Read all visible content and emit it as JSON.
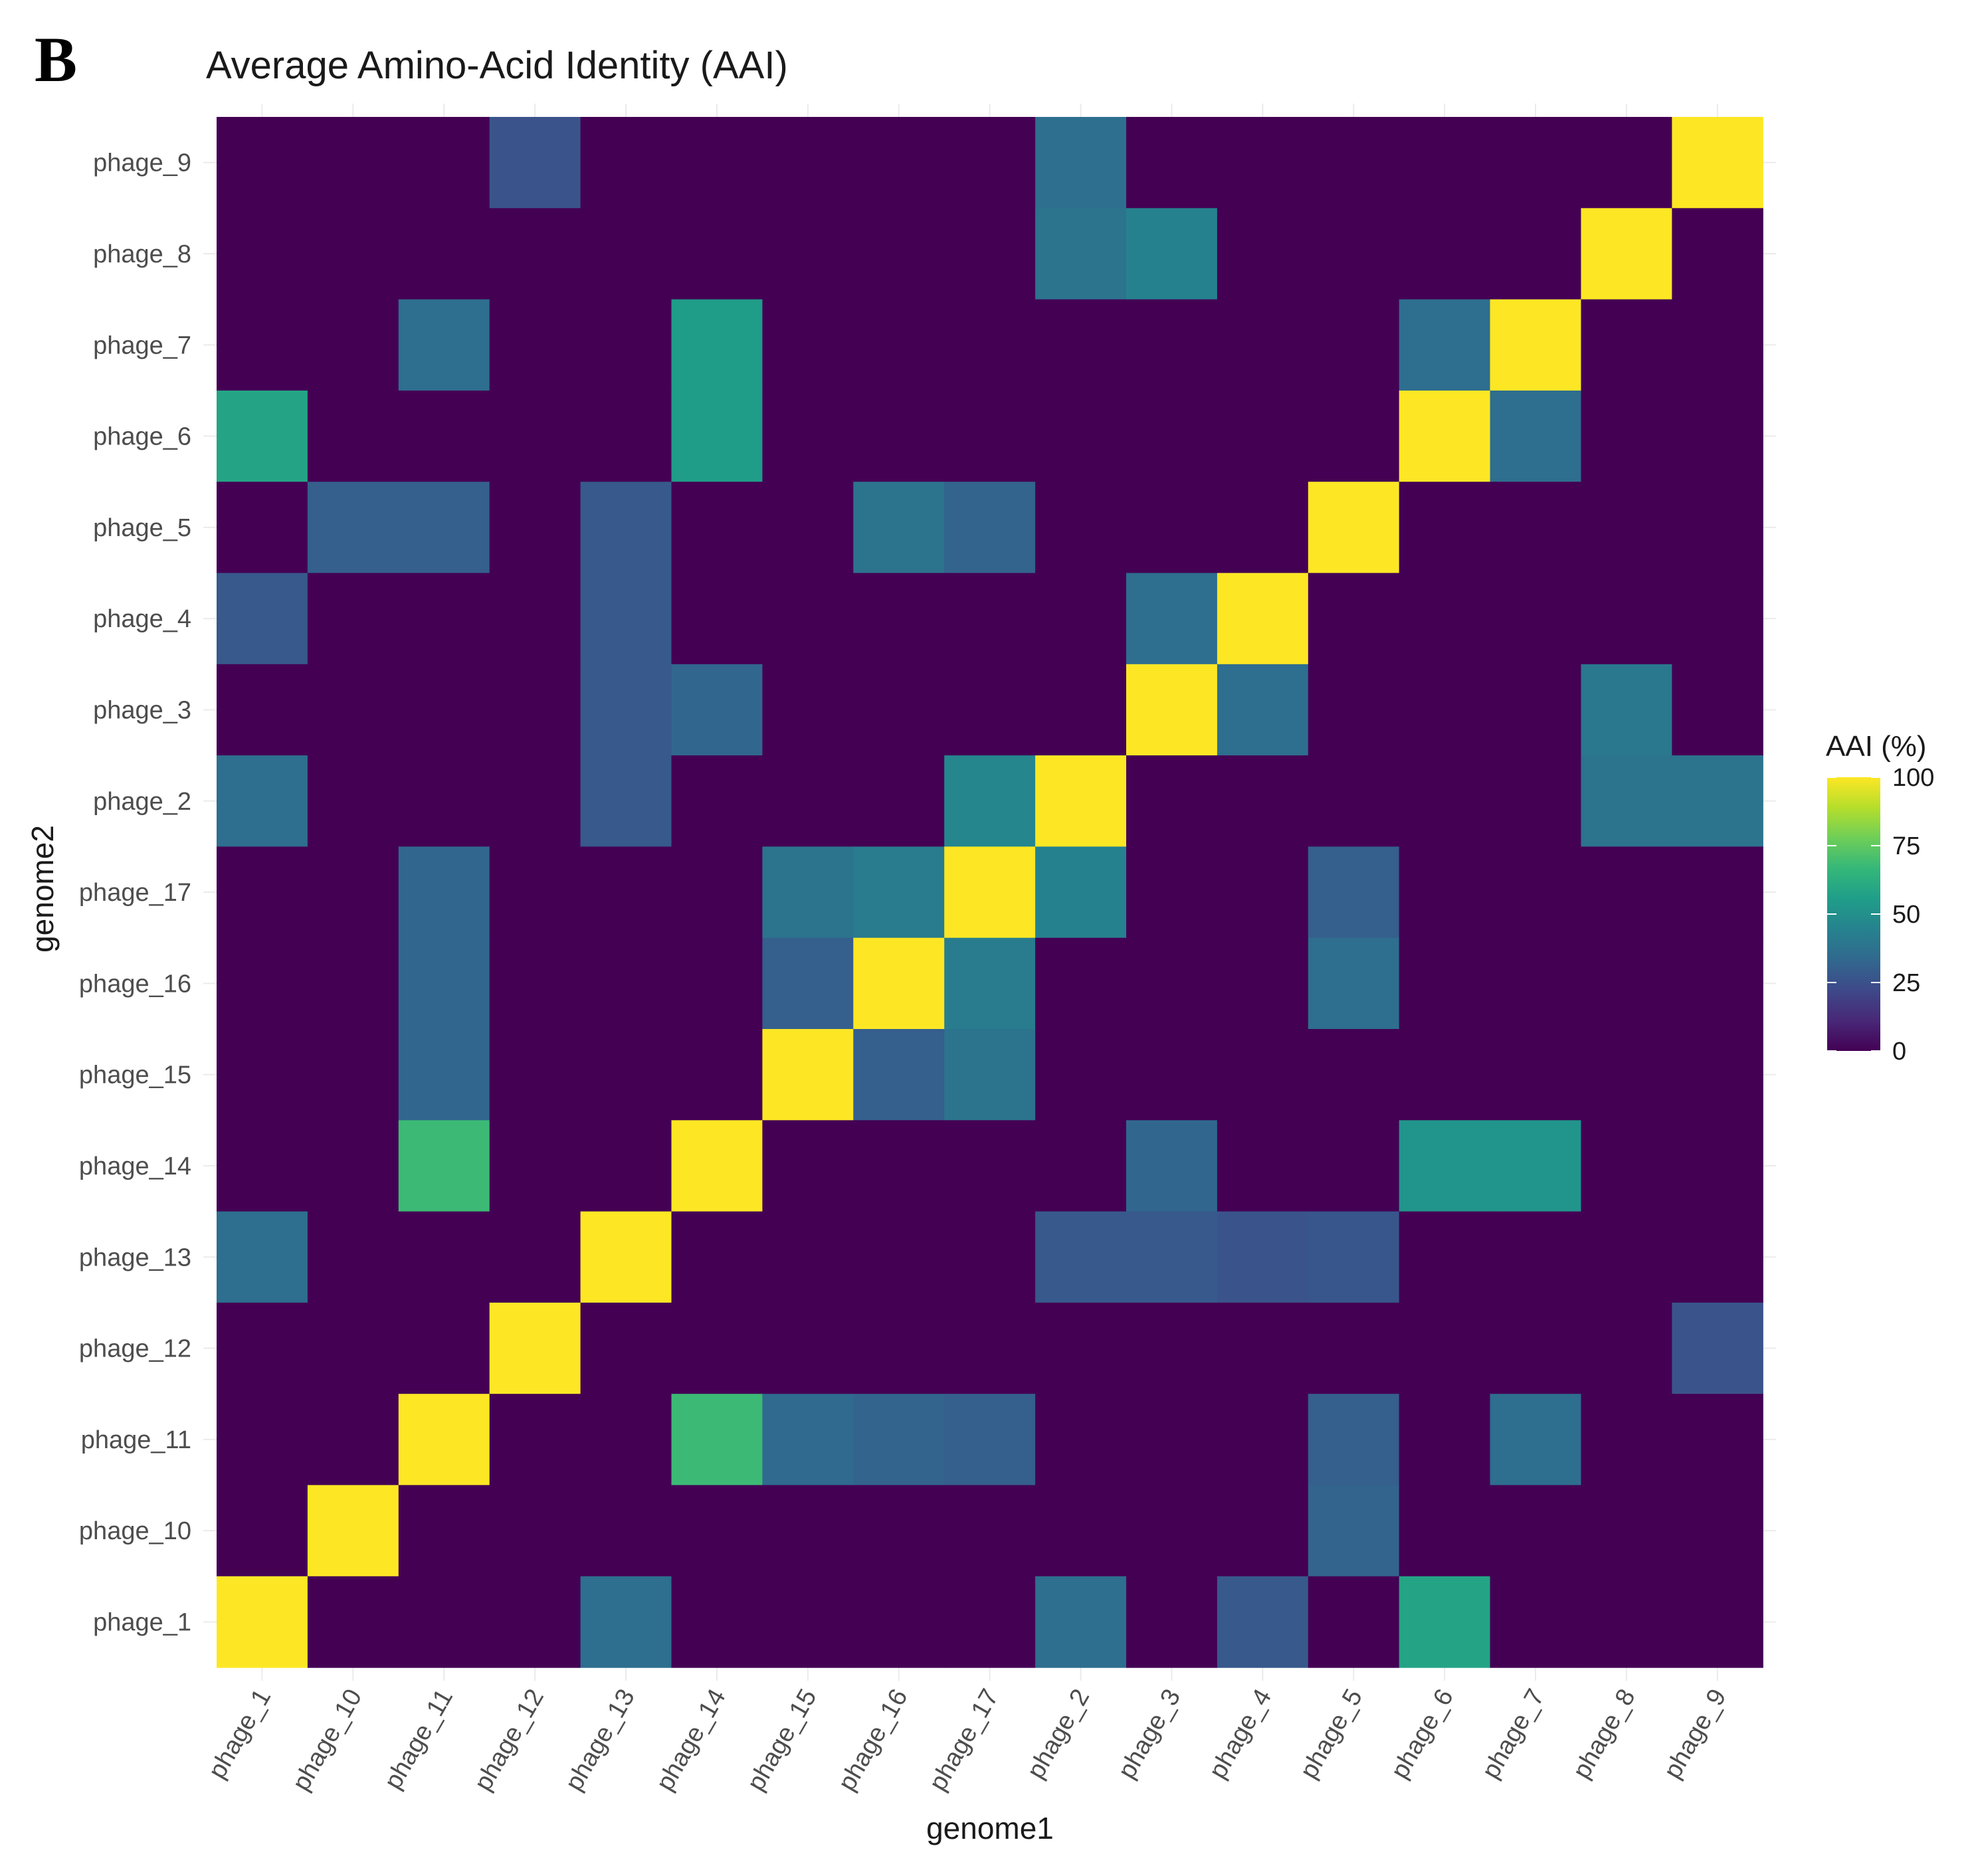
{
  "panel_label": "B",
  "chart_data": {
    "type": "heatmap",
    "title": "Average Amino-Acid Identity (AAI)",
    "xlabel": "genome1",
    "ylabel": "genome2",
    "x_categories": [
      "phage_1",
      "phage_10",
      "phage_11",
      "phage_12",
      "phage_13",
      "phage_14",
      "phage_15",
      "phage_16",
      "phage_17",
      "phage_2",
      "phage_3",
      "phage_4",
      "phage_5",
      "phage_6",
      "phage_7",
      "phage_8",
      "phage_9"
    ],
    "y_categories_top_to_bottom": [
      "phage_9",
      "phage_8",
      "phage_7",
      "phage_6",
      "phage_5",
      "phage_4",
      "phage_3",
      "phage_2",
      "phage_17",
      "phage_16",
      "phage_15",
      "phage_14",
      "phage_13",
      "phage_12",
      "phage_11",
      "phage_10",
      "phage_1"
    ],
    "values_rows_top_to_bottom": [
      [
        0,
        0,
        0,
        26,
        0,
        0,
        0,
        0,
        0,
        36,
        0,
        0,
        0,
        0,
        0,
        0,
        100
      ],
      [
        0,
        0,
        0,
        0,
        0,
        0,
        0,
        0,
        0,
        38,
        44,
        0,
        0,
        0,
        0,
        100,
        0
      ],
      [
        0,
        0,
        36,
        0,
        0,
        55,
        0,
        0,
        0,
        0,
        0,
        0,
        0,
        36,
        100,
        0,
        0
      ],
      [
        58,
        0,
        0,
        0,
        0,
        55,
        0,
        0,
        0,
        0,
        0,
        0,
        0,
        100,
        36,
        0,
        0
      ],
      [
        0,
        30,
        30,
        0,
        28,
        0,
        0,
        38,
        32,
        0,
        0,
        0,
        100,
        0,
        0,
        0,
        0
      ],
      [
        28,
        0,
        0,
        0,
        28,
        0,
        0,
        0,
        0,
        0,
        36,
        100,
        0,
        0,
        0,
        0,
        0
      ],
      [
        0,
        0,
        0,
        0,
        28,
        33,
        0,
        0,
        0,
        0,
        100,
        36,
        0,
        0,
        0,
        40,
        0
      ],
      [
        36,
        0,
        0,
        0,
        28,
        0,
        0,
        0,
        46,
        100,
        0,
        0,
        0,
        0,
        0,
        38,
        38
      ],
      [
        0,
        0,
        33,
        0,
        0,
        0,
        38,
        42,
        100,
        44,
        0,
        0,
        30,
        0,
        0,
        0,
        0
      ],
      [
        0,
        0,
        33,
        0,
        0,
        0,
        30,
        100,
        42,
        0,
        0,
        0,
        36,
        0,
        0,
        0,
        0
      ],
      [
        0,
        0,
        33,
        0,
        0,
        0,
        100,
        30,
        38,
        0,
        0,
        0,
        0,
        0,
        0,
        0,
        0
      ],
      [
        0,
        0,
        68,
        0,
        0,
        100,
        0,
        0,
        0,
        0,
        33,
        0,
        0,
        52,
        52,
        0,
        0
      ],
      [
        36,
        0,
        0,
        0,
        100,
        0,
        0,
        0,
        0,
        28,
        28,
        26,
        27,
        0,
        0,
        0,
        0
      ],
      [
        0,
        0,
        0,
        100,
        0,
        0,
        0,
        0,
        0,
        0,
        0,
        0,
        0,
        0,
        0,
        0,
        26
      ],
      [
        0,
        0,
        100,
        0,
        0,
        68,
        34,
        32,
        30,
        0,
        0,
        0,
        30,
        0,
        36,
        0,
        0
      ],
      [
        0,
        100,
        0,
        0,
        0,
        0,
        0,
        0,
        0,
        0,
        0,
        0,
        32,
        0,
        0,
        0,
        0
      ],
      [
        100,
        0,
        0,
        0,
        36,
        0,
        0,
        0,
        0,
        36,
        0,
        28,
        0,
        58,
        0,
        0,
        0
      ]
    ],
    "color_scale": {
      "name": "viridis",
      "min": 0,
      "max": 100,
      "stops": [
        "#440154",
        "#482878",
        "#3e4989",
        "#31688e",
        "#26828e",
        "#1f9e89",
        "#35b779",
        "#6ece58",
        "#b5de2b",
        "#fde725"
      ]
    },
    "legend": {
      "title": "AAI (%)",
      "ticks": [
        100,
        75,
        50,
        25,
        0
      ],
      "position": "right"
    },
    "grid": true,
    "background_color": "#ebebeb"
  }
}
